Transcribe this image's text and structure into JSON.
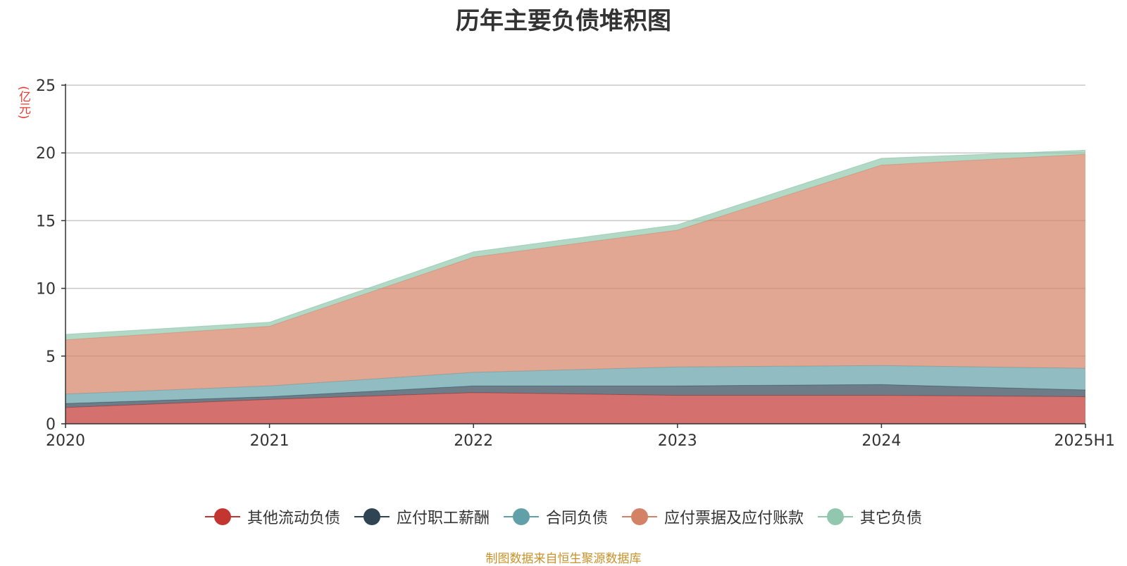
{
  "chart_data": {
    "type": "area",
    "stacked": true,
    "title": "历年主要负债堆积图",
    "ylabel": "(亿元)",
    "categories": [
      "2020",
      "2021",
      "2022",
      "2023",
      "2024",
      "2025H1"
    ],
    "ylim": [
      0,
      25
    ],
    "yticks": [
      0,
      5,
      10,
      15,
      20,
      25
    ],
    "grid": true,
    "legend_position": "bottom",
    "series": [
      {
        "name": "其他流动负债",
        "color": "#c23531",
        "values": [
          1.2,
          1.8,
          2.3,
          2.1,
          2.1,
          2.0
        ]
      },
      {
        "name": "应付职工薪酬",
        "color": "#2f4554",
        "values": [
          0.3,
          0.2,
          0.5,
          0.7,
          0.8,
          0.5
        ]
      },
      {
        "name": "合同负债",
        "color": "#61a0a8",
        "values": [
          0.7,
          0.8,
          1.0,
          1.4,
          1.4,
          1.6
        ]
      },
      {
        "name": "应付票据及应付账款",
        "color": "#d48265",
        "values": [
          4.0,
          4.4,
          8.5,
          10.1,
          14.8,
          15.8
        ]
      },
      {
        "name": "其它负债",
        "color": "#91c7ae",
        "values": [
          0.4,
          0.3,
          0.4,
          0.4,
          0.5,
          0.3
        ]
      }
    ],
    "source": "制图数据来自恒生聚源数据库"
  }
}
